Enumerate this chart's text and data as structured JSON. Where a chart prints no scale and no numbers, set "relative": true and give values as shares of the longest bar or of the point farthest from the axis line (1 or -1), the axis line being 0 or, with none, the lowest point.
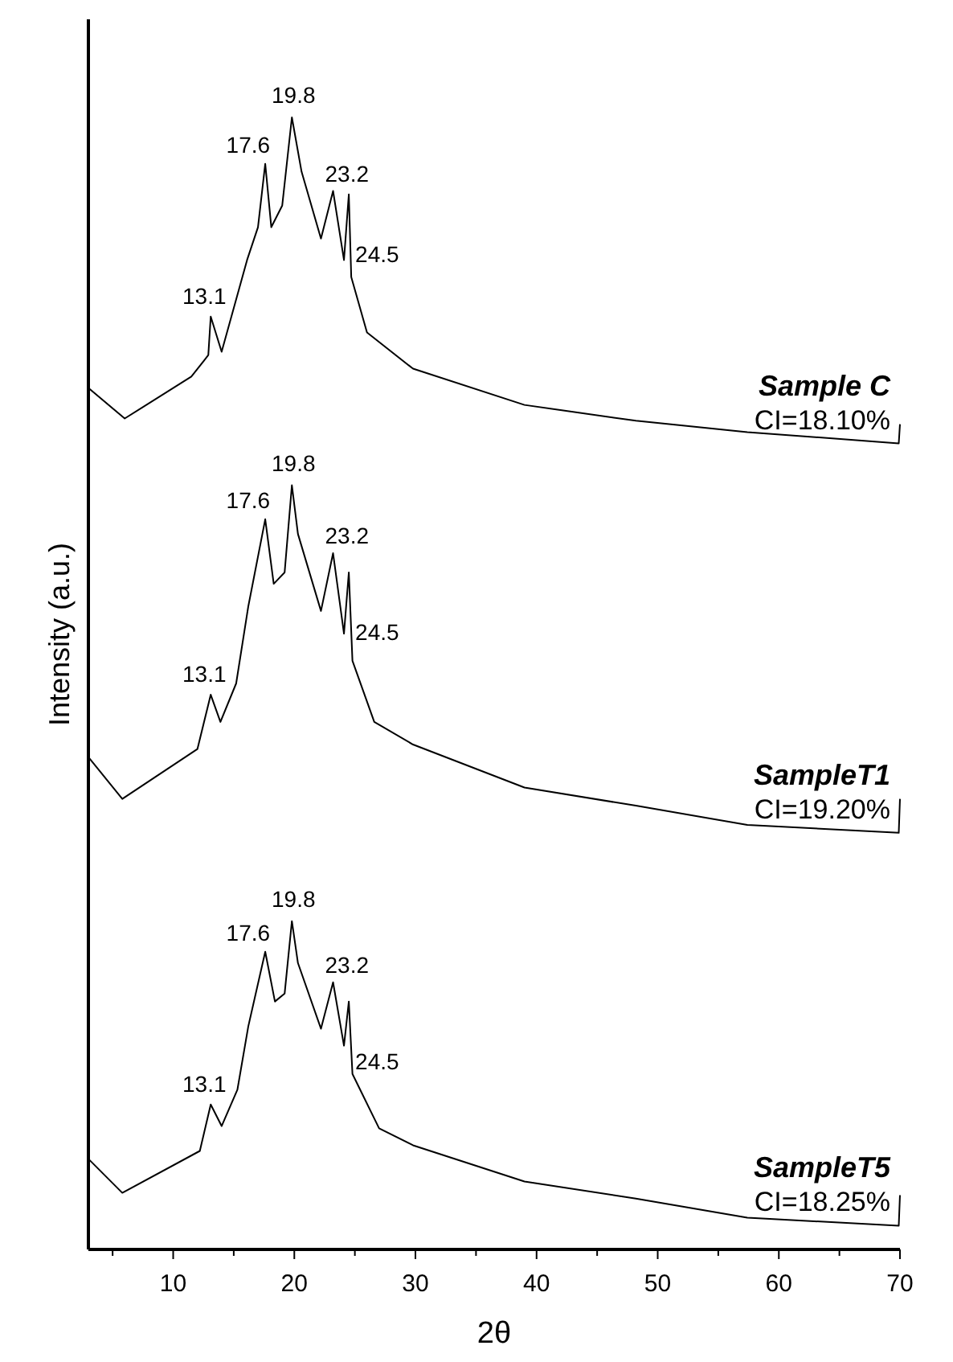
{
  "chart_data": {
    "type": "line",
    "xlabel": "2θ",
    "ylabel": "Intensity (a.u.)",
    "relative": true,
    "line_style": "solid",
    "xlim": [
      3,
      70
    ],
    "xticks": [
      {
        "value": 5,
        "label": null
      },
      10,
      {
        "value": 15,
        "label": null
      },
      20,
      {
        "value": 25,
        "label": null
      },
      30,
      {
        "value": 35,
        "label": null
      },
      40,
      {
        "value": 45,
        "label": null
      },
      50,
      {
        "value": 55,
        "label": null
      },
      60,
      {
        "value": 65,
        "label": null
      },
      70
    ],
    "series": [
      {
        "name": "Sample C",
        "color": "#000000",
        "x": [
          3,
          6,
          11.5,
          12.9,
          13.1,
          14,
          16.1,
          17,
          17.6,
          18.1,
          19,
          19.8,
          20.6,
          22.2,
          23.2,
          24.1,
          24.5,
          24.7,
          26,
          29.8,
          39,
          48.2,
          57.4,
          69.9,
          70
        ],
        "values": [
          0.761,
          0.734,
          0.771,
          0.79,
          0.824,
          0.793,
          0.874,
          0.903,
          0.959,
          0.903,
          0.922,
          1.0,
          0.952,
          0.893,
          0.935,
          0.874,
          0.932,
          0.859,
          0.81,
          0.778,
          0.746,
          0.732,
          0.722,
          0.712,
          0.729
        ]
      },
      {
        "name": "SampleT1",
        "color": "#000000",
        "x": [
          3,
          5.8,
          12,
          13.1,
          13.9,
          15.2,
          16.2,
          17.6,
          18.3,
          19.2,
          19.8,
          20.3,
          22.2,
          23.2,
          24.1,
          24.5,
          24.8,
          26.6,
          29.8,
          39,
          48.2,
          57.4,
          69.9,
          70
        ],
        "values": [
          0.435,
          0.398,
          0.442,
          0.49,
          0.466,
          0.5,
          0.568,
          0.645,
          0.588,
          0.598,
          0.675,
          0.632,
          0.564,
          0.615,
          0.544,
          0.598,
          0.52,
          0.466,
          0.446,
          0.408,
          0.392,
          0.375,
          0.368,
          0.398
        ]
      },
      {
        "name": "SampleT5",
        "color": "#000000",
        "x": [
          3,
          5.8,
          12.2,
          13.1,
          14,
          15.3,
          16.2,
          17.6,
          18.4,
          19.2,
          19.8,
          20.3,
          22.2,
          23.2,
          24.1,
          24.5,
          24.8,
          27,
          29.8,
          39,
          48.2,
          57.4,
          69.9,
          70
        ],
        "values": [
          0.08,
          0.05,
          0.087,
          0.128,
          0.109,
          0.141,
          0.197,
          0.263,
          0.219,
          0.226,
          0.29,
          0.253,
          0.195,
          0.236,
          0.18,
          0.219,
          0.155,
          0.107,
          0.092,
          0.06,
          0.045,
          0.028,
          0.021,
          0.048
        ]
      }
    ],
    "annotations": [
      {
        "text": "13.1",
        "x": 13.1,
        "y": 0.824
      },
      {
        "text": "17.6",
        "x": 17.6,
        "y": 0.959
      },
      {
        "text": "19.8",
        "x": 19.8,
        "y": 1.0
      },
      {
        "text": "23.2",
        "x": 23.2,
        "y": 0.935
      },
      {
        "text": "24.5",
        "x": 24.5,
        "y": 0.932
      },
      {
        "text": "13.1",
        "x": 13.1,
        "y": 0.49
      },
      {
        "text": "17.6",
        "x": 17.6,
        "y": 0.645
      },
      {
        "text": "19.8",
        "x": 19.8,
        "y": 0.675
      },
      {
        "text": "23.2",
        "x": 23.2,
        "y": 0.615
      },
      {
        "text": "24.5",
        "x": 24.5,
        "y": 0.598
      },
      {
        "text": "13.1",
        "x": 13.1,
        "y": 0.128
      },
      {
        "text": "17.6",
        "x": 17.6,
        "y": 0.263
      },
      {
        "text": "19.8",
        "x": 19.8,
        "y": 0.29
      },
      {
        "text": "23.2",
        "x": 23.2,
        "y": 0.236
      },
      {
        "text": "24.5",
        "x": 24.5,
        "y": 0.219
      },
      "CI=18.10%",
      "CI=19.20%",
      "CI=18.25%"
    ]
  }
}
